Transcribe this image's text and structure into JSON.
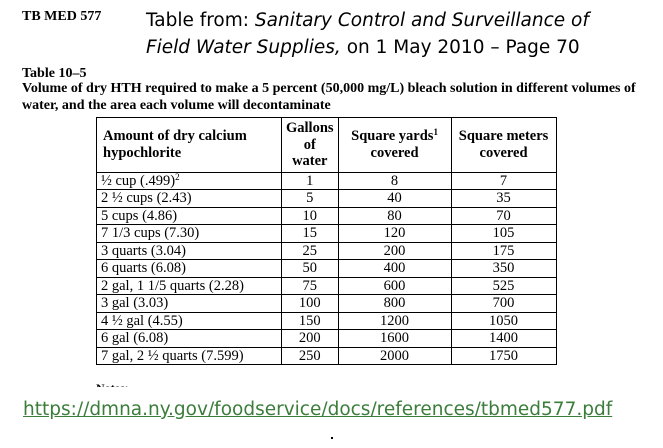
{
  "doc_code": "TB MED 577",
  "source": {
    "prefix": "Table from: ",
    "title_line1": "Sanitary Control and Surveillance of",
    "title_line2": "Field Water Supplies,",
    "suffix": " on 1 May 2010 – Page 70"
  },
  "table_number": "Table 10–5",
  "caption": "Volume of dry HTH required to make a 5 percent (50,000 mg/L) bleach solution in different volumes of water, and the area each volume will decontaminate",
  "headers": {
    "amount": "Amount of dry calcium hypochlorite",
    "gallons": "Gallons of water",
    "square_yards": "Square yards",
    "square_yards_note": "1",
    "square_yards_2": "covered",
    "square_meters": "Square meters covered"
  },
  "rows": [
    {
      "amount": "½ cup (.499)",
      "note": "2",
      "gallons": "1",
      "yards": "8",
      "meters": "7"
    },
    {
      "amount": "2 ½ cups (2.43)",
      "note": "",
      "gallons": "5",
      "yards": "40",
      "meters": "35"
    },
    {
      "amount": "5 cups (4.86)",
      "note": "",
      "gallons": "10",
      "yards": "80",
      "meters": "70"
    },
    {
      "amount": "7 1/3 cups (7.30)",
      "note": "",
      "gallons": "15",
      "yards": "120",
      "meters": "105"
    },
    {
      "amount": "3 quarts (3.04)",
      "note": "",
      "gallons": "25",
      "yards": "200",
      "meters": "175"
    },
    {
      "amount": "6 quarts (6.08)",
      "note": "",
      "gallons": "50",
      "yards": "400",
      "meters": "350"
    },
    {
      "amount": "2 gal, 1 1/5 quarts (2.28)",
      "note": "",
      "gallons": "75",
      "yards": "600",
      "meters": "525"
    },
    {
      "amount": "3 gal (3.03)",
      "note": "",
      "gallons": "100",
      "yards": "800",
      "meters": "700"
    },
    {
      "amount": "4 ½ gal (4.55)",
      "note": "",
      "gallons": "150",
      "yards": "1200",
      "meters": "1050"
    },
    {
      "amount": "6 gal (6.08)",
      "note": "",
      "gallons": "200",
      "yards": "1600",
      "meters": "1400"
    },
    {
      "amount": "7 gal, 2 ½ quarts (7.599)",
      "note": "",
      "gallons": "250",
      "yards": "2000",
      "meters": "1750"
    }
  ],
  "notes_label": "Notes:",
  "url": "https://dmna.ny.gov/foodservice/docs/references/tbmed577.pdf",
  "colors": {
    "link": "#3b7d3b",
    "text": "#000000"
  }
}
